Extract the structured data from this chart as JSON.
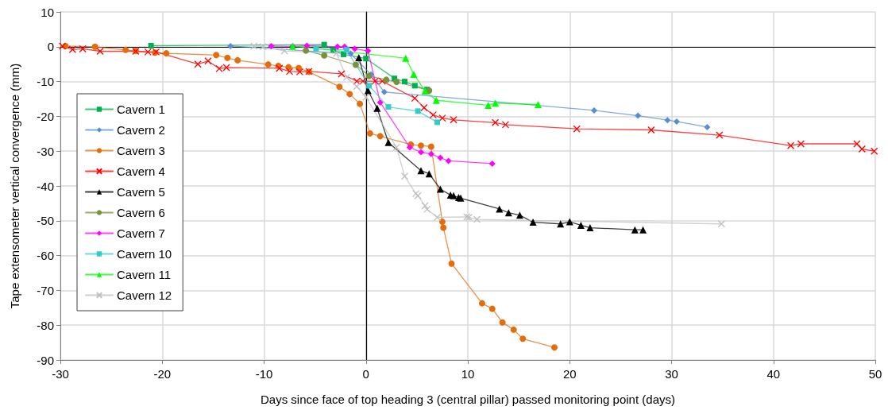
{
  "chart_data": {
    "type": "line",
    "xlabel": "Days since face of top heading 3 (central pillar) passed monitoring point (days)",
    "ylabel": "Tape extensometer vertical convergence (mm)",
    "xlim": [
      -30,
      50
    ],
    "xticks": [
      -30,
      -20,
      -10,
      0,
      10,
      20,
      30,
      40,
      50
    ],
    "ylim": [
      -90,
      10
    ],
    "yticks": [
      -90,
      -80,
      -70,
      -60,
      -50,
      -40,
      -30,
      -20,
      -10,
      0,
      10
    ],
    "grid": true,
    "legend": "left",
    "series": [
      {
        "name": "Cavern 1",
        "color": "#00b050",
        "marker": "square",
        "x": [
          -21.1,
          -4.1,
          -3.2,
          -2.2,
          0,
          2.8,
          3.8,
          4.8,
          6.0
        ],
        "values": [
          0.3,
          0.6,
          -0.9,
          -2.2,
          -3.4,
          -9.1,
          -10.0,
          -11.2,
          -12.3
        ]
      },
      {
        "name": "Cavern 2",
        "color": "#558ed5",
        "marker": "diamond",
        "x": [
          -13.3,
          -1.5,
          0.5,
          1.8,
          22.4,
          26.7,
          29.6,
          30.5,
          33.5
        ],
        "values": [
          0.2,
          -2.0,
          -8.0,
          -13.0,
          -18.3,
          -19.8,
          -21.1,
          -21.5,
          -23.1
        ]
      },
      {
        "name": "Cavern 3",
        "color": "#e46c0a",
        "marker": "circle",
        "x": [
          -29.5,
          -26.6,
          -23.6,
          -22.6,
          -20.7,
          -19.6,
          -14.7,
          -13.6,
          -12.6,
          -9.6,
          -8.6,
          -7.6,
          -6.6,
          -5.6,
          -2.6,
          -1.6,
          -0.6,
          0.4,
          1.4,
          4.4,
          5.4,
          6.4,
          7.5,
          7.6,
          8.4,
          11.4,
          12.4,
          13.4,
          14.5,
          15.4,
          18.5
        ],
        "values": [
          0.2,
          0,
          -0.9,
          -1.2,
          -1.7,
          -1.9,
          -2.4,
          -3.2,
          -3.9,
          -5.1,
          -5.5,
          -5.9,
          -6.1,
          -7.2,
          -11.5,
          -13.6,
          -16.4,
          -24.9,
          -25.7,
          -28.1,
          -28.4,
          -28.7,
          -50.3,
          -52.0,
          -62.3,
          -73.7,
          -75.3,
          -79.2,
          -81.3,
          -83.9,
          -86.4
        ]
      },
      {
        "name": "Cavern 4",
        "color": "#ff0000",
        "marker": "cross",
        "x": [
          -29.8,
          -28.8,
          -27.8,
          -26.1,
          -22.6,
          -21.4,
          -20.6,
          -16.5,
          -15.5,
          -14.4,
          -13.7,
          -8.5,
          -7.5,
          -6.5,
          -5.6,
          -2.4,
          -0.9,
          -0.3,
          0.9,
          1.6,
          4.8,
          5.7,
          6.6,
          7.5,
          8.6,
          12.7,
          13.7,
          20.7,
          28.0,
          34.7,
          41.7,
          42.7,
          48.2,
          48.7,
          49.9
        ],
        "values": [
          0.2,
          -0.8,
          -0.6,
          -1.3,
          -1.3,
          -1.5,
          -1.5,
          -5.0,
          -4.1,
          -6.3,
          -6.0,
          -6.2,
          -7.1,
          -7.2,
          -7.1,
          -7.8,
          -9.9,
          -9.9,
          -9.9,
          -9.9,
          -14.8,
          -17.5,
          -19.6,
          -20.5,
          -21.0,
          -21.8,
          -22.4,
          -23.6,
          -23.9,
          -25.4,
          -28.4,
          -27.9,
          -27.9,
          -29.4,
          -30.0
        ]
      },
      {
        "name": "Cavern 5",
        "color": "#000000",
        "marker": "triangle",
        "x": [
          -0.7,
          0.2,
          1.1,
          2.2,
          5.4,
          6.2,
          7.3,
          8.3,
          8.6,
          9.1,
          9.3,
          13.1,
          14.0,
          15.1,
          16.4,
          19.1,
          20.0,
          21.1,
          22.0,
          26.4,
          27.2
        ],
        "values": [
          -3.1,
          -12.6,
          -17.7,
          -27.5,
          -35.6,
          -36.5,
          -40.9,
          -42.6,
          -42.8,
          -43.3,
          -43.5,
          -46.6,
          -47.7,
          -48.4,
          -50.4,
          -50.9,
          -50.3,
          -51.3,
          -52.0,
          -52.6,
          -52.6
        ]
      },
      {
        "name": "Cavern 6",
        "color": "#77933c",
        "marker": "circle",
        "x": [
          -5.9,
          -4.1,
          -1.0,
          0.3,
          2.0,
          3.0,
          6.2
        ],
        "values": [
          -1.1,
          -2.5,
          -5.2,
          -8.4,
          -9.5,
          -10.1,
          -12.6
        ]
      },
      {
        "name": "Cavern 7",
        "color": "#ff00ff",
        "marker": "diamond",
        "x": [
          -9.3,
          -7.2,
          -5.8,
          -2.8,
          -2.1,
          -1.1,
          0.2,
          1.4,
          4.3,
          5.4,
          6.4,
          7.3,
          8.1,
          12.4
        ],
        "values": [
          0.2,
          0.1,
          0.3,
          0,
          0,
          -0.6,
          -1.2,
          -16.0,
          -28.9,
          -30.3,
          -30.8,
          -31.9,
          -32.8,
          -33.6
        ]
      },
      {
        "name": "Cavern 10",
        "color": "#33cccc",
        "marker": "square",
        "x": [
          -4.9,
          -1.9,
          0.3,
          2.2,
          5.1,
          7.0
        ],
        "values": [
          -0.6,
          -0.9,
          -11.2,
          -17.3,
          -18.5,
          -21.7
        ]
      },
      {
        "name": "Cavern 11",
        "color": "#00ff00",
        "marker": "triangle",
        "x": [
          -7.2,
          3.9,
          4.7,
          5.8,
          6.9,
          12.0,
          12.7,
          16.9
        ],
        "values": [
          0.2,
          -3.3,
          -7.9,
          -12.7,
          -15.4,
          -16.8,
          -16.2,
          -16.6
        ]
      },
      {
        "name": "Cavern 12",
        "color": "#bfbfbf",
        "marker": "cross",
        "x": [
          -11.0,
          -10.1,
          -8.0,
          -2.9,
          -1.9,
          -0.9,
          0,
          3.0,
          3.8,
          4.9,
          5.1,
          5.8,
          6.0,
          7.0,
          9.9,
          10.1,
          10.9,
          34.9
        ],
        "values": [
          0.2,
          0,
          -1.2,
          -1.9,
          -8.8,
          -11.4,
          -14.5,
          -28.9,
          -37.2,
          -42.2,
          -42.8,
          -45.7,
          -46.7,
          -49.0,
          -48.9,
          -49.0,
          -49.6,
          -50.9
        ]
      }
    ]
  }
}
